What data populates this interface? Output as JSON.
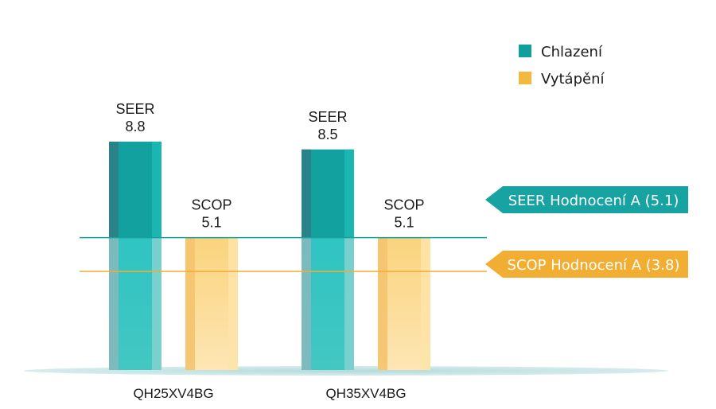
{
  "chart_data": {
    "type": "bar",
    "categories": [
      "QH25XV4BG",
      "QH35XV4BG"
    ],
    "series": [
      {
        "name": "Chlazení",
        "metric": "SEER",
        "values": [
          8.8,
          8.5
        ],
        "color": "#1aa3a0"
      },
      {
        "name": "Vytápění",
        "metric": "SCOP",
        "values": [
          5.1,
          5.1
        ],
        "color": "#f2b83a"
      }
    ],
    "reference_lines": [
      {
        "label": "SEER Hodnocení A (5.1)",
        "value": 5.1,
        "color": "#17a0a0"
      },
      {
        "label": "SCOP Hodnocení A (3.8)",
        "value": 3.8,
        "color": "#f2ad33"
      }
    ],
    "legend_position": "top-right",
    "ylim": [
      0,
      11.53
    ],
    "title": "",
    "xlabel": "",
    "ylabel": ""
  }
}
